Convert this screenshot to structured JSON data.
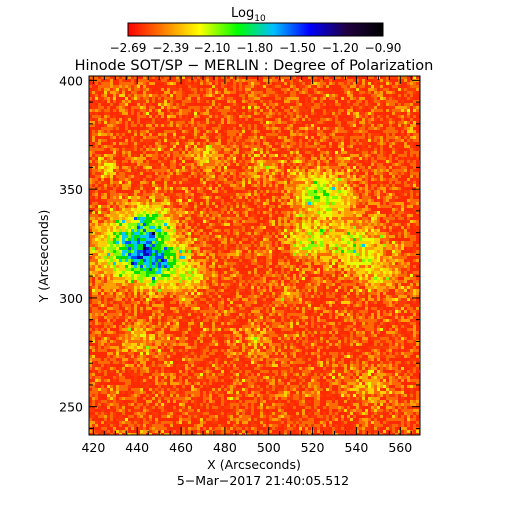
{
  "colorbar": {
    "title_main": "Log",
    "title_sub": "10",
    "tick_labels": [
      "−2.69",
      "−2.39",
      "−2.10",
      "−1.80",
      "−1.50",
      "−1.20",
      "−0.90"
    ],
    "range": [
      -2.69,
      -0.9
    ],
    "colors": [
      "#ff0000",
      "#ff7f00",
      "#ffff00",
      "#00ff00",
      "#00c0ff",
      "#0000ff",
      "#200040",
      "#000000"
    ]
  },
  "chart_data": {
    "type": "heatmap",
    "title": "Hinode SOT/SP − MERLIN : Degree of Polarization",
    "xlabel": "X (Arcseconds)",
    "ylabel": "Y (Arcseconds)",
    "xlim": [
      418,
      569
    ],
    "ylim": [
      237,
      402
    ],
    "x_ticks": [
      420,
      440,
      460,
      480,
      500,
      520,
      540,
      560
    ],
    "y_ticks": [
      250,
      300,
      350,
      400
    ],
    "x_tick_labels": [
      "420",
      "440",
      "460",
      "480",
      "500",
      "520",
      "540",
      "560"
    ],
    "y_tick_labels": [
      "250",
      "300",
      "350",
      "400"
    ],
    "value_range": [
      -2.69,
      -0.9
    ],
    "value_label": "Log10 Degree of Polarization",
    "dominant_palette": {
      "background": "#ff2a00",
      "mid": "#ffd000",
      "high": "#00e000",
      "higher": "#0030ff",
      "peak": "#000020"
    }
  },
  "footer": {
    "timestamp": "5−Mar−2017 21:40:05.512"
  }
}
